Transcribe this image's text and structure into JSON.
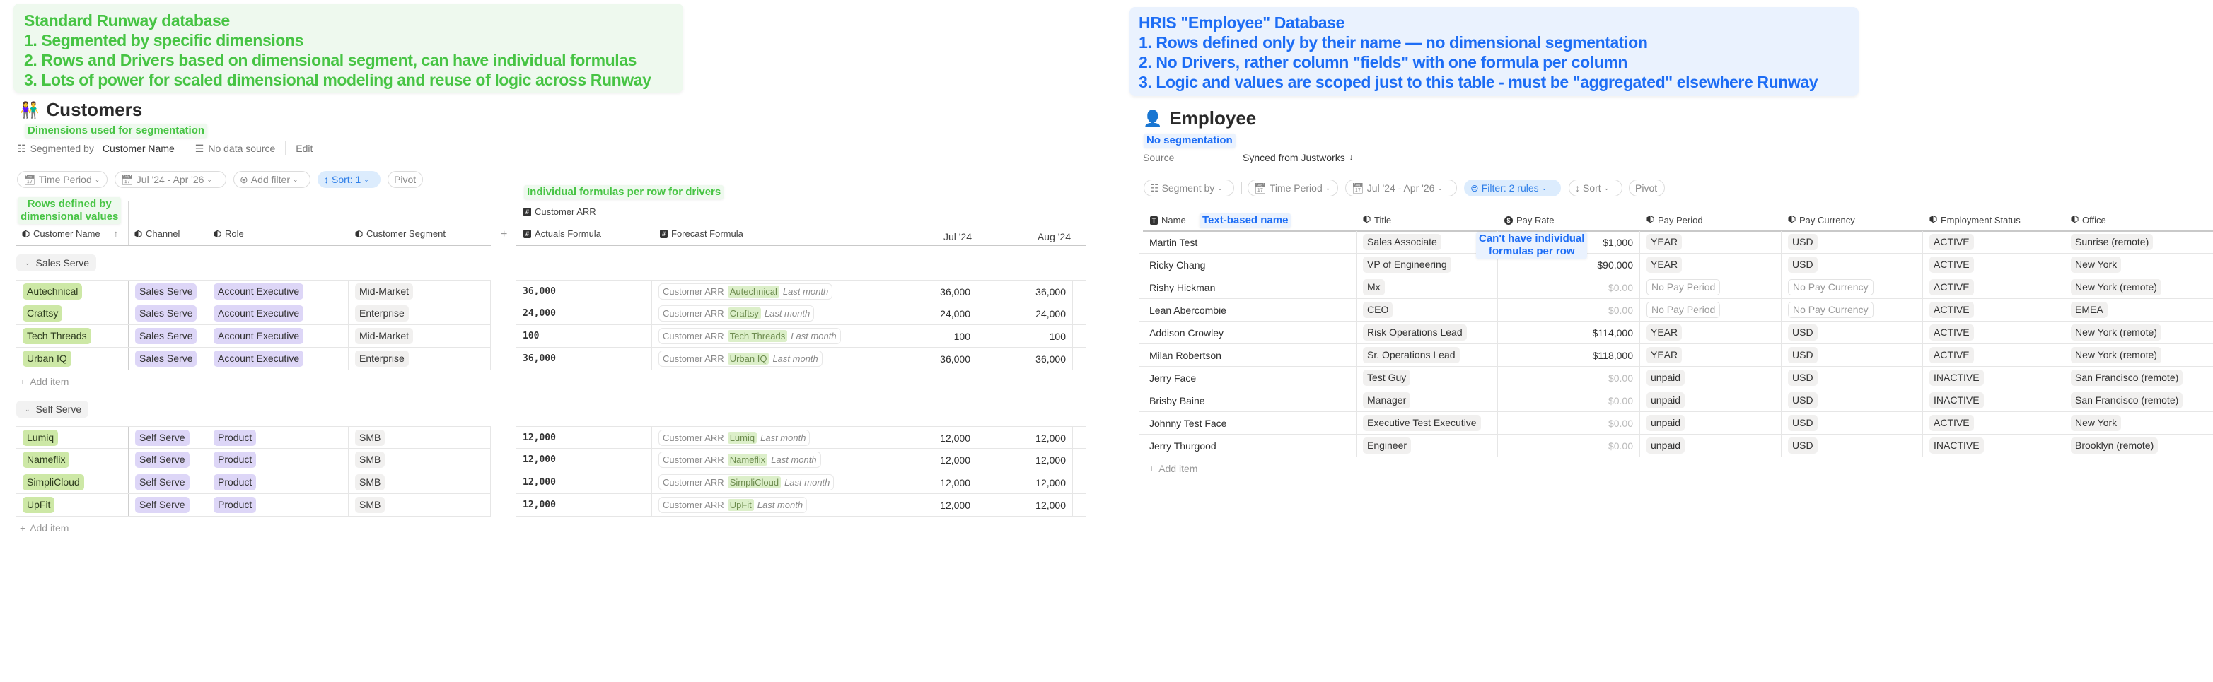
{
  "left": {
    "note": {
      "lines": [
        "Standard Runway database",
        "1. Segmented by specific dimensions",
        "2. Rows and Drivers based on dimensional segment, can have individual formulas",
        "3. Lots of power for scaled dimensional modeling and reuse of logic across Runway"
      ]
    },
    "title": "Customers",
    "title_icon": "people-icon",
    "annotations": {
      "dimensions": "Dimensions used for segmentation",
      "rows_line1": "Rows defined by",
      "rows_line2": "dimensional values",
      "formulas": "Individual formulas per row for drivers"
    },
    "meta": {
      "segmented_by_label": "Segmented by",
      "segmented_by_value": "Customer Name",
      "data_source": "No data source",
      "edit": "Edit"
    },
    "toolbar": {
      "time_period": "Time Period",
      "date_range": "Jul '24 - Apr '26",
      "add_filter": "Add filter",
      "sort": "Sort: 1",
      "pivot": "Pivot"
    },
    "columns": {
      "name": "Customer Name",
      "channel": "Channel",
      "role": "Role",
      "segment": "Customer Segment",
      "add": "+",
      "driver": "Customer ARR",
      "actuals": "Actuals Formula",
      "forecast": "Forecast Formula",
      "months": [
        "Jul '24",
        "Aug '24"
      ]
    },
    "add_item": "Add item",
    "groups": [
      {
        "label": "Sales Serve",
        "rows": [
          {
            "name": "Autechnical",
            "channel": "Sales Serve",
            "role": "Account Executive",
            "segment": "Mid-Market",
            "actuals": "36,000",
            "f_ref": "Customer ARR",
            "f_tag": "Autechnical",
            "f_suffix": "Last month",
            "values": [
              "36,000",
              "36,000"
            ]
          },
          {
            "name": "Craftsy",
            "channel": "Sales Serve",
            "role": "Account Executive",
            "segment": "Enterprise",
            "actuals": "24,000",
            "f_ref": "Customer ARR",
            "f_tag": "Craftsy",
            "f_suffix": "Last month",
            "values": [
              "24,000",
              "24,000"
            ]
          },
          {
            "name": "Tech Threads",
            "channel": "Sales Serve",
            "role": "Account Executive",
            "segment": "Mid-Market",
            "actuals": "100",
            "f_ref": "Customer ARR",
            "f_tag": "Tech Threads",
            "f_suffix": "Last month",
            "values": [
              "100",
              "100"
            ]
          },
          {
            "name": "Urban IQ",
            "channel": "Sales Serve",
            "role": "Account Executive",
            "segment": "Enterprise",
            "actuals": "36,000",
            "f_ref": "Customer ARR",
            "f_tag": "Urban IQ",
            "f_suffix": "Last month",
            "values": [
              "36,000",
              "36,000"
            ]
          }
        ]
      },
      {
        "label": "Self Serve",
        "rows": [
          {
            "name": "Lumiq",
            "channel": "Self Serve",
            "role": "Product",
            "segment": "SMB",
            "actuals": "12,000",
            "f_ref": "Customer ARR",
            "f_tag": "Lumiq",
            "f_suffix": "Last month",
            "values": [
              "12,000",
              "12,000"
            ]
          },
          {
            "name": "Nameflix",
            "channel": "Self Serve",
            "role": "Product",
            "segment": "SMB",
            "actuals": "12,000",
            "f_ref": "Customer ARR",
            "f_tag": "Nameflix",
            "f_suffix": "Last month",
            "values": [
              "12,000",
              "12,000"
            ]
          },
          {
            "name": "SimpliCloud",
            "channel": "Self Serve",
            "role": "Product",
            "segment": "SMB",
            "actuals": "12,000",
            "f_ref": "Customer ARR",
            "f_tag": "SimpliCloud",
            "f_suffix": "Last month",
            "values": [
              "12,000",
              "12,000"
            ]
          },
          {
            "name": "UpFit",
            "channel": "Self Serve",
            "role": "Product",
            "segment": "SMB",
            "actuals": "12,000",
            "f_ref": "Customer ARR",
            "f_tag": "UpFit",
            "f_suffix": "Last month",
            "values": [
              "12,000",
              "12,000"
            ]
          }
        ]
      }
    ]
  },
  "right": {
    "note": {
      "lines": [
        "HRIS \"Employee\" Database",
        "1. Rows defined only by their name — no dimensional segmentation",
        "2. No Drivers, rather column \"fields\" with one formula per column",
        "3. Logic and values are scoped just to this table - must be \"aggregated\" elsewhere Runway"
      ]
    },
    "title": "Employee",
    "title_icon": "person-icon",
    "annotations": {
      "segmentation": "No segmentation",
      "name": "Text-based name",
      "formulas_line1": "Can't have individual",
      "formulas_line2": "formulas per row"
    },
    "meta": {
      "source_label": "Source",
      "source_value": "Synced from Justworks"
    },
    "toolbar": {
      "segment_by": "Segment by",
      "time_period": "Time Period",
      "date_range": "Jul '24 - Apr '26",
      "filter": "Filter: 2 rules",
      "sort": "Sort",
      "pivot": "Pivot"
    },
    "columns": [
      "Name",
      "Title",
      "Pay Rate",
      "Pay Period",
      "Pay Currency",
      "Employment Status",
      "Office"
    ],
    "add_item": "Add item",
    "rows": [
      {
        "name": "Martin Test",
        "title": "Sales Associate",
        "pay_rate": "$1,000",
        "pay_period": "YEAR",
        "currency": "USD",
        "status": "ACTIVE",
        "office": "Sunrise (remote)"
      },
      {
        "name": "Ricky Chang",
        "title": "VP of Engineering",
        "pay_rate": "$90,000",
        "pay_period": "YEAR",
        "currency": "USD",
        "status": "ACTIVE",
        "office": "New York"
      },
      {
        "name": "Rishy Hickman",
        "title": "Mx",
        "pay_rate": "$0.00",
        "pay_period": "No Pay Period",
        "currency": "No Pay Currency",
        "status": "ACTIVE",
        "office": "New York (remote)"
      },
      {
        "name": "Lean Abercombie",
        "title": "CEO",
        "pay_rate": "$0.00",
        "pay_period": "No Pay Period",
        "currency": "No Pay Currency",
        "status": "ACTIVE",
        "office": "EMEA"
      },
      {
        "name": "Addison Crowley",
        "title": "Risk Operations Lead",
        "pay_rate": "$114,000",
        "pay_period": "YEAR",
        "currency": "USD",
        "status": "ACTIVE",
        "office": "New York (remote)"
      },
      {
        "name": "Milan Robertson",
        "title": "Sr. Operations Lead",
        "pay_rate": "$118,000",
        "pay_period": "YEAR",
        "currency": "USD",
        "status": "ACTIVE",
        "office": "New York (remote)"
      },
      {
        "name": "Jerry Face",
        "title": "Test Guy",
        "pay_rate": "$0.00",
        "pay_period": "unpaid",
        "currency": "USD",
        "status": "INACTIVE",
        "office": "San Francisco (remote)"
      },
      {
        "name": "Brisby Baine",
        "title": "Manager",
        "pay_rate": "$0.00",
        "pay_period": "unpaid",
        "currency": "USD",
        "status": "INACTIVE",
        "office": "San Francisco (remote)"
      },
      {
        "name": "Johnny Test Face",
        "title": "Executive Test Executive",
        "pay_rate": "$0.00",
        "pay_period": "unpaid",
        "currency": "USD",
        "status": "ACTIVE",
        "office": "New York"
      },
      {
        "name": "Jerry Thurgood",
        "title": "Engineer",
        "pay_rate": "$0.00",
        "pay_period": "unpaid",
        "currency": "USD",
        "status": "INACTIVE",
        "office": "Brooklyn (remote)"
      }
    ]
  },
  "colors": {
    "note_green": "#47c444",
    "note_blue": "#1d6df5",
    "tag_green": "#cde8a6",
    "tag_purple": "#ddd6f7",
    "tag_grey": "#f1f0ef",
    "active_pill": "#dcecfd"
  }
}
